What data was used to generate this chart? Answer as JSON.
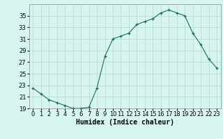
{
  "title": "",
  "xlabel": "Humidex (Indice chaleur)",
  "x": [
    0,
    1,
    2,
    3,
    4,
    5,
    6,
    7,
    8,
    9,
    10,
    11,
    12,
    13,
    14,
    15,
    16,
    17,
    18,
    19,
    20,
    21,
    22,
    23
  ],
  "y": [
    22.5,
    21.5,
    20.5,
    20.0,
    19.5,
    19.0,
    19.0,
    19.2,
    22.5,
    28.0,
    31.0,
    31.5,
    32.0,
    33.5,
    34.0,
    34.5,
    35.5,
    36.0,
    35.5,
    35.0,
    32.0,
    30.0,
    27.5,
    26.0
  ],
  "line_color": "#1a6b5a",
  "bg_color": "#d6f5f0",
  "grid_color": "#b8d8d4",
  "ylim": [
    19,
    37
  ],
  "yticks": [
    19,
    21,
    23,
    25,
    27,
    29,
    31,
    33,
    35
  ],
  "xlim": [
    -0.5,
    23.5
  ],
  "xticks": [
    0,
    1,
    2,
    3,
    4,
    5,
    6,
    7,
    8,
    9,
    10,
    11,
    12,
    13,
    14,
    15,
    16,
    17,
    18,
    19,
    20,
    21,
    22,
    23
  ],
  "tick_fontsize": 6,
  "xlabel_fontsize": 7
}
